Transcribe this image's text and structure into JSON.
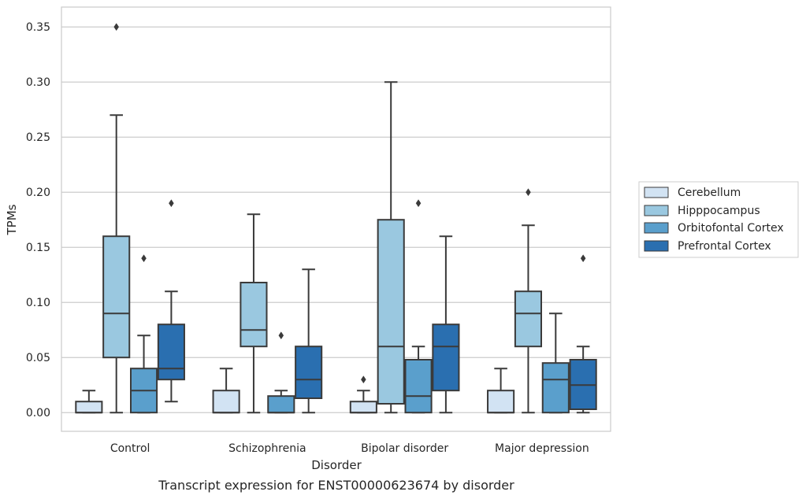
{
  "chart_data": {
    "type": "box",
    "caption": "Transcript expression for ENST00000623674 by disorder",
    "xlabel": "Disorder",
    "ylabel": "TPMs",
    "ylim": [
      -0.017,
      0.368
    ],
    "yticks": [
      0.0,
      0.05,
      0.1,
      0.15,
      0.2,
      0.25,
      0.3,
      0.35
    ],
    "ytick_labels": [
      "0.00",
      "0.05",
      "0.10",
      "0.15",
      "0.20",
      "0.25",
      "0.30",
      "0.35"
    ],
    "grid": true,
    "legend_position": "right",
    "categories": [
      "Control",
      "Schizophrenia",
      "Bipolar disorder",
      "Major depression"
    ],
    "series": [
      {
        "name": "Cerebellum",
        "color": "#d2e3f3",
        "boxes": [
          {
            "whislo": 0.0,
            "q1": 0.0,
            "med": 0.0,
            "q3": 0.01,
            "whishi": 0.02,
            "fliers": []
          },
          {
            "whislo": 0.0,
            "q1": 0.0,
            "med": 0.0,
            "q3": 0.02,
            "whishi": 0.04,
            "fliers": []
          },
          {
            "whislo": 0.0,
            "q1": 0.0,
            "med": 0.0,
            "q3": 0.01,
            "whishi": 0.02,
            "fliers": [
              0.03
            ]
          },
          {
            "whislo": 0.0,
            "q1": 0.0,
            "med": 0.0,
            "q3": 0.02,
            "whishi": 0.04,
            "fliers": []
          }
        ]
      },
      {
        "name": "Hipppocampus",
        "color": "#9ac8e0",
        "boxes": [
          {
            "whislo": 0.0,
            "q1": 0.05,
            "med": 0.09,
            "q3": 0.16,
            "whishi": 0.27,
            "fliers": [
              0.35
            ]
          },
          {
            "whislo": 0.0,
            "q1": 0.06,
            "med": 0.075,
            "q3": 0.118,
            "whishi": 0.18,
            "fliers": []
          },
          {
            "whislo": 0.0,
            "q1": 0.008,
            "med": 0.06,
            "q3": 0.175,
            "whishi": 0.3,
            "fliers": []
          },
          {
            "whislo": 0.0,
            "q1": 0.06,
            "med": 0.09,
            "q3": 0.11,
            "whishi": 0.17,
            "fliers": [
              0.2
            ]
          }
        ]
      },
      {
        "name": "Orbitofontal Cortex",
        "color": "#5a9fcc",
        "boxes": [
          {
            "whislo": 0.0,
            "q1": 0.0,
            "med": 0.02,
            "q3": 0.04,
            "whishi": 0.07,
            "fliers": [
              0.14
            ]
          },
          {
            "whislo": 0.0,
            "q1": 0.0,
            "med": 0.0,
            "q3": 0.015,
            "whishi": 0.02,
            "fliers": [
              0.07
            ]
          },
          {
            "whislo": 0.0,
            "q1": 0.0,
            "med": 0.015,
            "q3": 0.048,
            "whishi": 0.06,
            "fliers": [
              0.19
            ]
          },
          {
            "whislo": 0.0,
            "q1": 0.0,
            "med": 0.03,
            "q3": 0.045,
            "whishi": 0.09,
            "fliers": []
          }
        ]
      },
      {
        "name": "Prefrontal Cortex",
        "color": "#2a6fb0",
        "boxes": [
          {
            "whislo": 0.01,
            "q1": 0.03,
            "med": 0.04,
            "q3": 0.08,
            "whishi": 0.11,
            "fliers": [
              0.19
            ]
          },
          {
            "whislo": 0.0,
            "q1": 0.013,
            "med": 0.03,
            "q3": 0.06,
            "whishi": 0.13,
            "fliers": []
          },
          {
            "whislo": 0.0,
            "q1": 0.02,
            "med": 0.06,
            "q3": 0.08,
            "whishi": 0.16,
            "fliers": []
          },
          {
            "whislo": 0.0,
            "q1": 0.003,
            "med": 0.025,
            "q3": 0.048,
            "whishi": 0.06,
            "fliers": [
              0.14
            ]
          }
        ]
      }
    ]
  }
}
